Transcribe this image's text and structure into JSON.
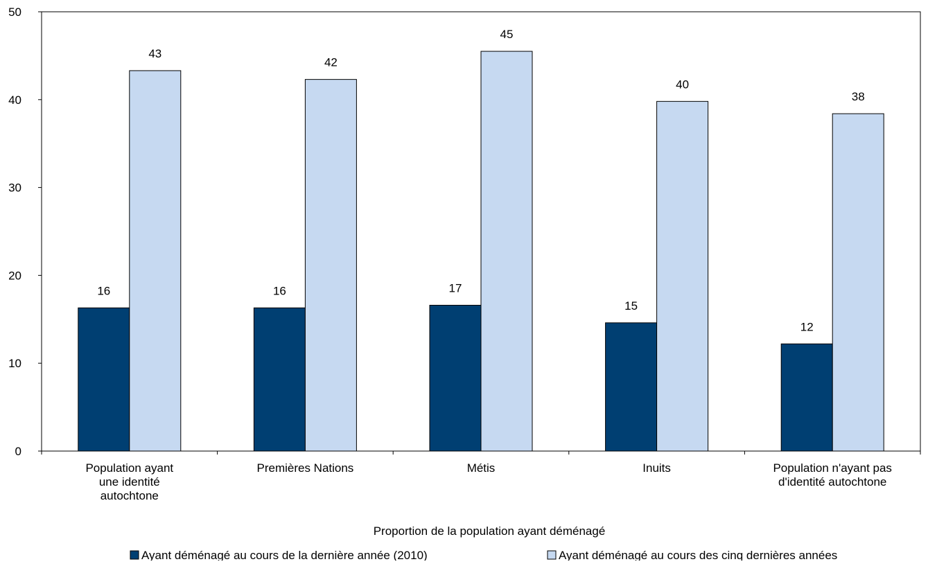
{
  "chart_data": {
    "type": "bar",
    "title": "",
    "xlabel": "Proportion de la population ayant déménagé",
    "ylabel": "",
    "ylim": [
      0,
      50
    ],
    "yticks": [
      0,
      10,
      20,
      30,
      40,
      50
    ],
    "grid": false,
    "legend_position": "bottom",
    "categories": [
      [
        "Population ayant",
        "une identité",
        "autochtone"
      ],
      [
        "Premières Nations"
      ],
      [
        "Métis"
      ],
      [
        "Inuits"
      ],
      [
        "Population n'ayant pas",
        "d'identité autochtone"
      ]
    ],
    "series": [
      {
        "name": "Ayant déménagé au cours de la dernière année (2010)",
        "color": "#003f72",
        "values": [
          16.3,
          16.3,
          16.6,
          14.6,
          12.2
        ],
        "labels": [
          "16",
          "16",
          "17",
          "15",
          "12"
        ]
      },
      {
        "name": "Ayant déménagé au cours des cinq dernières années",
        "color": "#c6d9f1",
        "values": [
          43.3,
          42.3,
          45.5,
          39.8,
          38.4
        ],
        "labels": [
          "43",
          "42",
          "45",
          "40",
          "38"
        ]
      }
    ]
  }
}
